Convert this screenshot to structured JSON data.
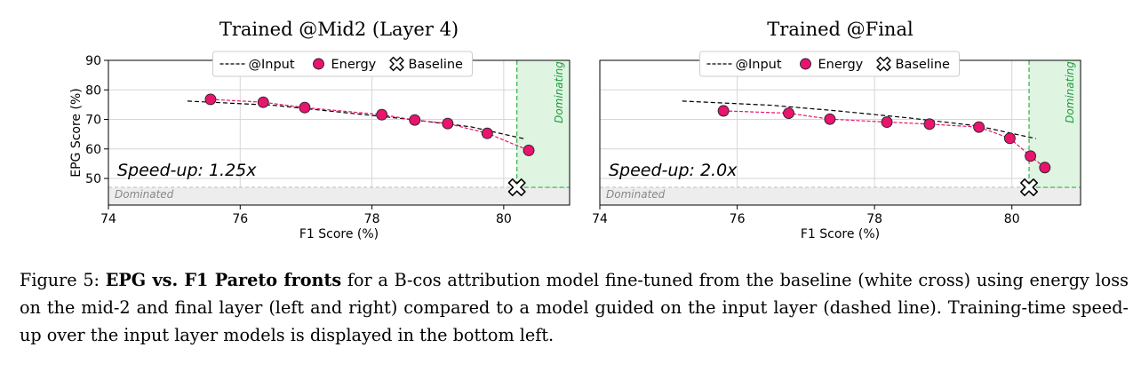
{
  "chart_data": [
    {
      "type": "scatter",
      "title": "Trained @Mid2 (Layer 4)",
      "xlabel": "F1 Score (%)",
      "ylabel": "EPG Score (%)",
      "xlim": [
        74,
        81
      ],
      "ylim": [
        41,
        90
      ],
      "xticks": [
        "74",
        "76",
        "78",
        "80"
      ],
      "yticks": [
        "50",
        "60",
        "70",
        "80",
        "90"
      ],
      "grid": true,
      "legend_position": "top-center",
      "legend": [
        "@Input",
        "Energy",
        "Baseline"
      ],
      "annotation": "Speed-up: 1.25x",
      "region_labels": {
        "dominated": "Dominated",
        "dominating": "Dominating"
      },
      "baseline": {
        "x": 80.2,
        "y": 47
      },
      "series": [
        {
          "name": "@Input",
          "style": "dashed",
          "color": "#000000",
          "x": [
            75.2,
            76.5,
            77.5,
            78.5,
            79.5,
            80.3
          ],
          "y": [
            76.2,
            74.8,
            72.5,
            70.2,
            67.5,
            63.5
          ]
        },
        {
          "name": "Energy",
          "style": "dashed-marker",
          "color": "#e8146e",
          "x": [
            75.55,
            76.35,
            76.98,
            78.15,
            78.65,
            79.15,
            79.75,
            80.38
          ],
          "y": [
            76.8,
            75.8,
            74.0,
            71.6,
            69.8,
            68.6,
            65.3,
            59.5
          ]
        }
      ]
    },
    {
      "type": "scatter",
      "title": "Trained @Final",
      "xlabel": "F1 Score (%)",
      "ylabel": "",
      "xlim": [
        74,
        81
      ],
      "ylim": [
        41,
        90
      ],
      "xticks": [
        "74",
        "76",
        "78",
        "80"
      ],
      "yticks": [],
      "grid": true,
      "legend_position": "top-center",
      "legend": [
        "@Input",
        "Energy",
        "Baseline"
      ],
      "annotation": "Speed-up: 2.0x",
      "region_labels": {
        "dominated": "Dominated",
        "dominating": "Dominating"
      },
      "baseline": {
        "x": 80.25,
        "y": 47
      },
      "series": [
        {
          "name": "@Input",
          "style": "dashed",
          "color": "#000000",
          "x": [
            75.2,
            76.5,
            77.5,
            78.5,
            79.5,
            80.35
          ],
          "y": [
            76.2,
            74.8,
            72.8,
            70.5,
            67.8,
            63.5
          ]
        },
        {
          "name": "Energy",
          "style": "dashed-marker",
          "color": "#e8146e",
          "x": [
            75.8,
            76.75,
            77.35,
            78.18,
            78.8,
            79.52,
            79.97,
            80.27,
            80.48
          ],
          "y": [
            72.9,
            72.1,
            70.1,
            69.1,
            68.4,
            67.4,
            63.6,
            57.6,
            53.7
          ]
        }
      ]
    }
  ],
  "caption": {
    "prefix": "Figure 5: ",
    "bold": "EPG vs.  F1 Pareto fronts",
    "text": " for a B-cos attribution model fine-tuned from the baseline (white cross) using energy loss on the mid-2 and final layer (left and right) compared to a model guided on the input layer (dashed line). Training-time speed-up over the input layer models is displayed in the bottom left."
  },
  "colors": {
    "energy": "#e8146e",
    "dominating_fill": "#dff5e2",
    "dominating_line": "#2fb34a",
    "dominated_fill": "#ededed",
    "grid": "#d6d6d6"
  }
}
